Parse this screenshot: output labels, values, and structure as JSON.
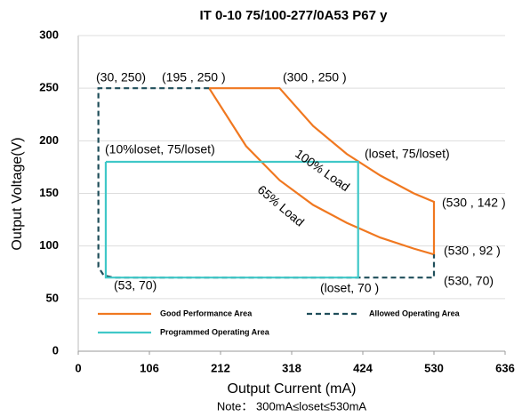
{
  "chart_data": {
    "type": "line",
    "title": "IT 0-10 75/100-277/0A53 P67 y",
    "x_label": "Output Current (mA)",
    "y_label": "Output Voltage(V)",
    "note": "Note： 300mA≤loset≤530mA",
    "xlim": [
      0,
      636
    ],
    "xticks": [
      0,
      106,
      212,
      318,
      424,
      530,
      636
    ],
    "ylim": [
      0,
      300
    ],
    "yticks": [
      0,
      50,
      100,
      150,
      200,
      250,
      300
    ],
    "grid": true,
    "series": [
      {
        "name": "Good Performance Area",
        "color": "#f07820",
        "x": [
          195,
          300,
          350,
          400,
          450,
          500,
          530,
          530,
          500,
          450,
          400,
          350,
          300,
          250,
          195
        ],
        "values": [
          250,
          250,
          214,
          187.5,
          167,
          150,
          142,
          92,
          97.5,
          108,
          122,
          139,
          162.5,
          195,
          250
        ]
      },
      {
        "name": "Allowed Operating Area",
        "color": "#1f4e5a",
        "dashed": true,
        "x": [
          195,
          30,
          30,
          38,
          53,
          530,
          530
        ],
        "values": [
          250,
          250,
          80,
          72,
          70,
          70,
          92
        ]
      },
      {
        "name": "Programmed Operating Area",
        "color": "#40c8c8",
        "x": [
          41,
          417,
          417,
          41,
          41
        ],
        "values": [
          180,
          180,
          70,
          70,
          180
        ]
      }
    ],
    "annotations": [
      "(30, 250)",
      "(195 , 250 )",
      "(300 , 250 )",
      "(10%loset, 75/loset)",
      "100% Load",
      "(loset, 75/loset)",
      "65% Load",
      "(530 , 142 )",
      "(530 , 92 )",
      "(53, 70)",
      "(loset, 70 )",
      "(530, 70)"
    ]
  }
}
